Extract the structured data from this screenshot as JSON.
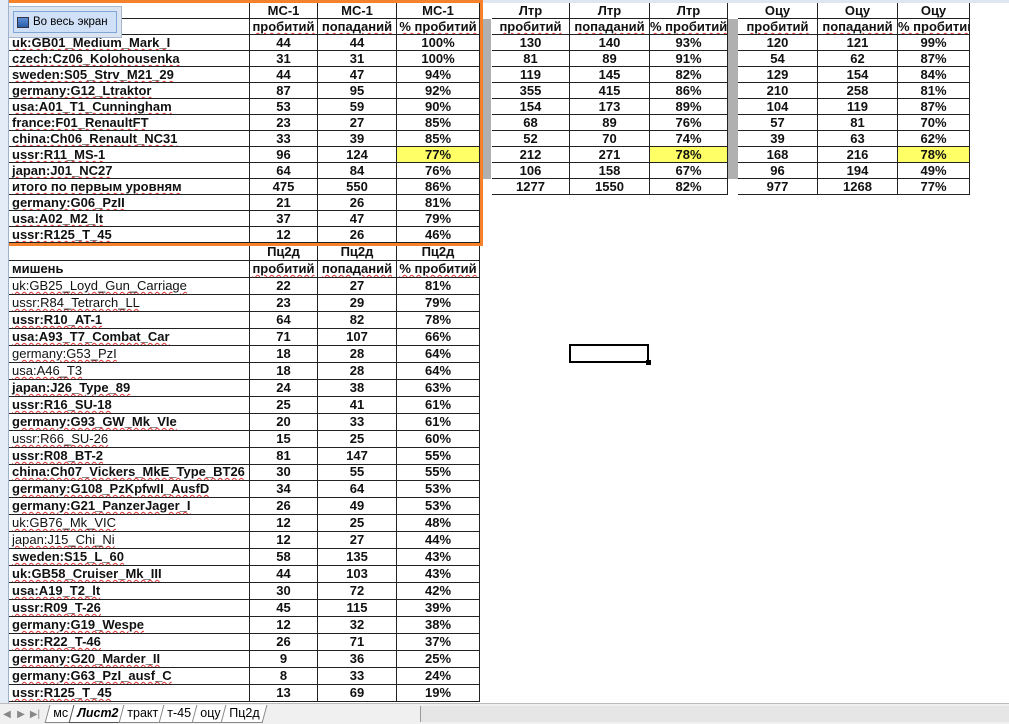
{
  "popup": {
    "fullscreen_label": "Во весь экран"
  },
  "colors": {
    "highlight": "#ffff66",
    "frame": "#f5822a"
  },
  "table1": {
    "groups": [
      "МС-1",
      "Лтр",
      "Оцу"
    ],
    "subheaders": [
      "пробитий",
      "попаданий",
      "% пробитий"
    ],
    "rows": [
      {
        "name": "uk:GB01_Medium_Mark_I",
        "v": [
          [
            "44",
            "44",
            "100%"
          ],
          [
            "130",
            "140",
            "93%"
          ],
          [
            "120",
            "121",
            "99%"
          ]
        ]
      },
      {
        "name": "czech:Cz06_Kolohousenka",
        "v": [
          [
            "31",
            "31",
            "100%"
          ],
          [
            "81",
            "89",
            "91%"
          ],
          [
            "54",
            "62",
            "87%"
          ]
        ]
      },
      {
        "name": "sweden:S05_Strv_M21_29",
        "v": [
          [
            "44",
            "47",
            "94%"
          ],
          [
            "119",
            "145",
            "82%"
          ],
          [
            "129",
            "154",
            "84%"
          ]
        ]
      },
      {
        "name": "germany:G12_Ltraktor",
        "v": [
          [
            "87",
            "95",
            "92%"
          ],
          [
            "355",
            "415",
            "86%"
          ],
          [
            "210",
            "258",
            "81%"
          ]
        ]
      },
      {
        "name": "usa:A01_T1_Cunningham",
        "v": [
          [
            "53",
            "59",
            "90%"
          ],
          [
            "154",
            "173",
            "89%"
          ],
          [
            "104",
            "119",
            "87%"
          ]
        ]
      },
      {
        "name": "france:F01_RenaultFT",
        "v": [
          [
            "23",
            "27",
            "85%"
          ],
          [
            "68",
            "89",
            "76%"
          ],
          [
            "57",
            "81",
            "70%"
          ]
        ]
      },
      {
        "name": "china:Ch06_Renault_NC31",
        "v": [
          [
            "33",
            "39",
            "85%"
          ],
          [
            "52",
            "70",
            "74%"
          ],
          [
            "39",
            "63",
            "62%"
          ]
        ]
      },
      {
        "name": "ussr:R11_MS-1",
        "highlight": true,
        "v": [
          [
            "96",
            "124",
            "77%"
          ],
          [
            "212",
            "271",
            "78%"
          ],
          [
            "168",
            "216",
            "78%"
          ]
        ]
      },
      {
        "name": "japan:J01_NC27",
        "v": [
          [
            "64",
            "84",
            "76%"
          ],
          [
            "106",
            "158",
            "67%"
          ],
          [
            "96",
            "194",
            "49%"
          ]
        ]
      },
      {
        "name": "итого по первым уровням",
        "total": true,
        "v": [
          [
            "475",
            "550",
            "86%"
          ],
          [
            "1277",
            "1550",
            "82%"
          ],
          [
            "977",
            "1268",
            "77%"
          ]
        ]
      },
      {
        "name": "germany:G06_PzII",
        "v": [
          [
            "21",
            "26",
            "81%"
          ]
        ]
      },
      {
        "name": "usa:A02_M2_lt",
        "v": [
          [
            "37",
            "47",
            "79%"
          ]
        ]
      },
      {
        "name": "ussr:R125_T_45",
        "v": [
          [
            "12",
            "26",
            "46%"
          ]
        ]
      }
    ]
  },
  "table2": {
    "group": "Пц2д",
    "target_label": "мишень",
    "subheaders": [
      "пробитий",
      "попаданий",
      "% пробитий"
    ],
    "rows": [
      {
        "name": "uk:GB25_Loyd_Gun_Carriage",
        "normal": true,
        "v": [
          "22",
          "27",
          "81%"
        ]
      },
      {
        "name": "ussr:R84_Tetrarch_LL",
        "normal": true,
        "v": [
          "23",
          "29",
          "79%"
        ]
      },
      {
        "name": "ussr:R10_AT-1",
        "v": [
          "64",
          "82",
          "78%"
        ]
      },
      {
        "name": "usa:A93_T7_Combat_Car",
        "v": [
          "71",
          "107",
          "66%"
        ]
      },
      {
        "name": "germany:G53_PzI",
        "normal": true,
        "v": [
          "18",
          "28",
          "64%"
        ]
      },
      {
        "name": "usa:A46_T3",
        "normal": true,
        "v": [
          "18",
          "28",
          "64%"
        ]
      },
      {
        "name": "japan:J26_Type_89",
        "v": [
          "24",
          "38",
          "63%"
        ]
      },
      {
        "name": "ussr:R16_SU-18",
        "v": [
          "25",
          "41",
          "61%"
        ]
      },
      {
        "name": "germany:G93_GW_Mk_VIe",
        "v": [
          "20",
          "33",
          "61%"
        ]
      },
      {
        "name": "ussr:R66_SU-26",
        "normal": true,
        "v": [
          "15",
          "25",
          "60%"
        ]
      },
      {
        "name": "ussr:R08_BT-2",
        "v": [
          "81",
          "147",
          "55%"
        ]
      },
      {
        "name": "china:Ch07_Vickers_MkE_Type_BT26",
        "v": [
          "30",
          "55",
          "55%"
        ]
      },
      {
        "name": "germany:G108_PzKpfwII_AusfD",
        "v": [
          "34",
          "64",
          "53%"
        ]
      },
      {
        "name": "germany:G21_PanzerJager_I",
        "v": [
          "26",
          "49",
          "53%"
        ]
      },
      {
        "name": "uk:GB76_Mk_VIC",
        "normal": true,
        "v": [
          "12",
          "25",
          "48%"
        ]
      },
      {
        "name": "japan:J15_Chi_Ni",
        "normal": true,
        "v": [
          "12",
          "27",
          "44%"
        ]
      },
      {
        "name": "sweden:S15_L_60",
        "v": [
          "58",
          "135",
          "43%"
        ]
      },
      {
        "name": "uk:GB58_Cruiser_Mk_III",
        "v": [
          "44",
          "103",
          "43%"
        ]
      },
      {
        "name": "usa:A19_T2_lt",
        "v": [
          "30",
          "72",
          "42%"
        ]
      },
      {
        "name": "ussr:R09_T-26",
        "v": [
          "45",
          "115",
          "39%"
        ]
      },
      {
        "name": "germany:G19_Wespe",
        "v": [
          "12",
          "32",
          "38%"
        ]
      },
      {
        "name": "ussr:R22_T-46",
        "v": [
          "26",
          "71",
          "37%"
        ]
      },
      {
        "name": "germany:G20_Marder_II",
        "v": [
          "9",
          "36",
          "25%"
        ]
      },
      {
        "name": "germany:G63_PzI_ausf_C",
        "v": [
          "8",
          "33",
          "24%"
        ]
      },
      {
        "name": "ussr:R125_T_45",
        "v": [
          "13",
          "69",
          "19%"
        ]
      }
    ]
  },
  "sheet_tabs": [
    {
      "label": "мс"
    },
    {
      "label": "Лист2",
      "active": true
    },
    {
      "label": "тракт"
    },
    {
      "label": "т-45"
    },
    {
      "label": "оцу"
    },
    {
      "label": "Пц2д"
    }
  ]
}
